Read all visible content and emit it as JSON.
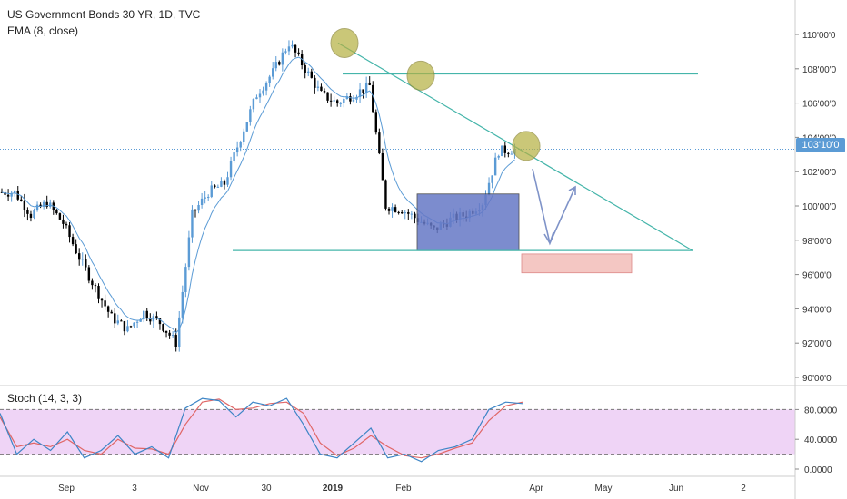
{
  "legend": {
    "title": "US Government Bonds 30 YR, 1D, TVC",
    "ema": "EMA (8, close)",
    "stoch": "Stoch (14, 3, 3)"
  },
  "colors": {
    "price_ema": "#5b9bd5",
    "stoch_k": "#3d85c6",
    "stoch_d": "#e06666",
    "trendline": "#45b5aa",
    "highlight_circle": "#b5b040",
    "stoch_band": "#e5b8f0",
    "box_blue": "#6678c6",
    "box_pink": "#f4c7c3",
    "arrow": "#7f93c8"
  },
  "price_axis": {
    "ticks": [
      "110'00'0",
      "108'00'0",
      "106'00'0",
      "104'00'0",
      "102'00'0",
      "100'00'0",
      "98'00'0",
      "96'00'0",
      "94'00'0",
      "92'00'0",
      "90'00'0"
    ],
    "current_price_label": "103'10'0"
  },
  "stoch_axis": {
    "ticks": [
      "80.0000",
      "40.0000",
      "0.0000"
    ]
  },
  "time_axis": {
    "ticks": [
      "Sep",
      "3",
      "Nov",
      "30",
      "2019",
      "Feb",
      "Apr",
      "May",
      "Jun",
      "2"
    ]
  },
  "chart_data": {
    "type": "candlestick",
    "title": "US Government Bonds 30 YR, 1D, TVC",
    "y_range": [
      90,
      111
    ],
    "current_price": 103.31,
    "price_series": {
      "name": "US Government Bonds 30 YR",
      "x": [
        "Aug 20",
        "Aug 27",
        "Sep 3",
        "Sep 10",
        "Sep 17",
        "Sep 24",
        "Oct 1",
        "Oct 8",
        "Oct 15",
        "Oct 22",
        "Oct 29",
        "Nov 5",
        "Nov 12",
        "Nov 19",
        "Nov 26",
        "Dec 3",
        "Dec 10",
        "Dec 17",
        "Dec 24",
        "Dec 31",
        "Jan 7",
        "Jan 14",
        "Jan 21",
        "Jan 28",
        "Feb 4",
        "Feb 11",
        "Feb 18",
        "Feb 25",
        "Mar 4",
        "Mar 11",
        "Mar 18",
        "Mar 25"
      ],
      "close": [
        100.8,
        99.5,
        100.2,
        99.0,
        97.0,
        95.2,
        93.5,
        92.8,
        93.8,
        93.2,
        92.0,
        99.5,
        100.8,
        101.3,
        104.0,
        106.5,
        107.8,
        109.5,
        108.0,
        106.5,
        106.0,
        106.5,
        107.0,
        100.0,
        99.8,
        99.2,
        98.6,
        99.2,
        99.5,
        100.2,
        103.2,
        103.3
      ]
    },
    "ema": {
      "name": "EMA (8, close)",
      "period": 8
    },
    "stochastic": {
      "name": "Stoch (14, 3, 3)",
      "levels": [
        80,
        20
      ],
      "y_range": [
        0,
        100
      ],
      "k": [
        75,
        20,
        40,
        25,
        50,
        15,
        25,
        45,
        20,
        30,
        15,
        82,
        95,
        92,
        70,
        90,
        85,
        95,
        60,
        20,
        15,
        35,
        55,
        15,
        20,
        10,
        25,
        30,
        40,
        80,
        90,
        88
      ],
      "d": [
        70,
        30,
        35,
        30,
        40,
        25,
        20,
        40,
        28,
        27,
        20,
        60,
        90,
        94,
        80,
        82,
        88,
        90,
        75,
        35,
        18,
        28,
        45,
        30,
        18,
        15,
        20,
        28,
        35,
        65,
        85,
        90
      ]
    },
    "annotations": [
      {
        "type": "trendline",
        "from": [
          "Dec 17",
          109.5
        ],
        "to": [
          "Jun 5",
          97.4
        ]
      },
      {
        "type": "horizontal",
        "from": [
          "Jan 22",
          107.7
        ],
        "to": [
          "Jun 10",
          107.7
        ]
      },
      {
        "type": "horizontal",
        "from": [
          "Nov 10",
          97.4
        ],
        "to": [
          "Jun 5",
          97.4
        ]
      },
      {
        "type": "rectangle",
        "color": "blue",
        "from": [
          "Feb 4",
          100.7
        ],
        "to": [
          "Mar 18",
          97.4
        ]
      },
      {
        "type": "rectangle",
        "color": "pink",
        "from": [
          "Mar 25",
          97.2
        ],
        "to": [
          "May 10",
          96.1
        ]
      },
      {
        "type": "circle",
        "at": [
          "Dec 17",
          109.5
        ]
      },
      {
        "type": "circle",
        "at": [
          "Jan 28",
          107.6
        ]
      },
      {
        "type": "circle",
        "at": [
          "Mar 28",
          103.5
        ]
      }
    ]
  }
}
